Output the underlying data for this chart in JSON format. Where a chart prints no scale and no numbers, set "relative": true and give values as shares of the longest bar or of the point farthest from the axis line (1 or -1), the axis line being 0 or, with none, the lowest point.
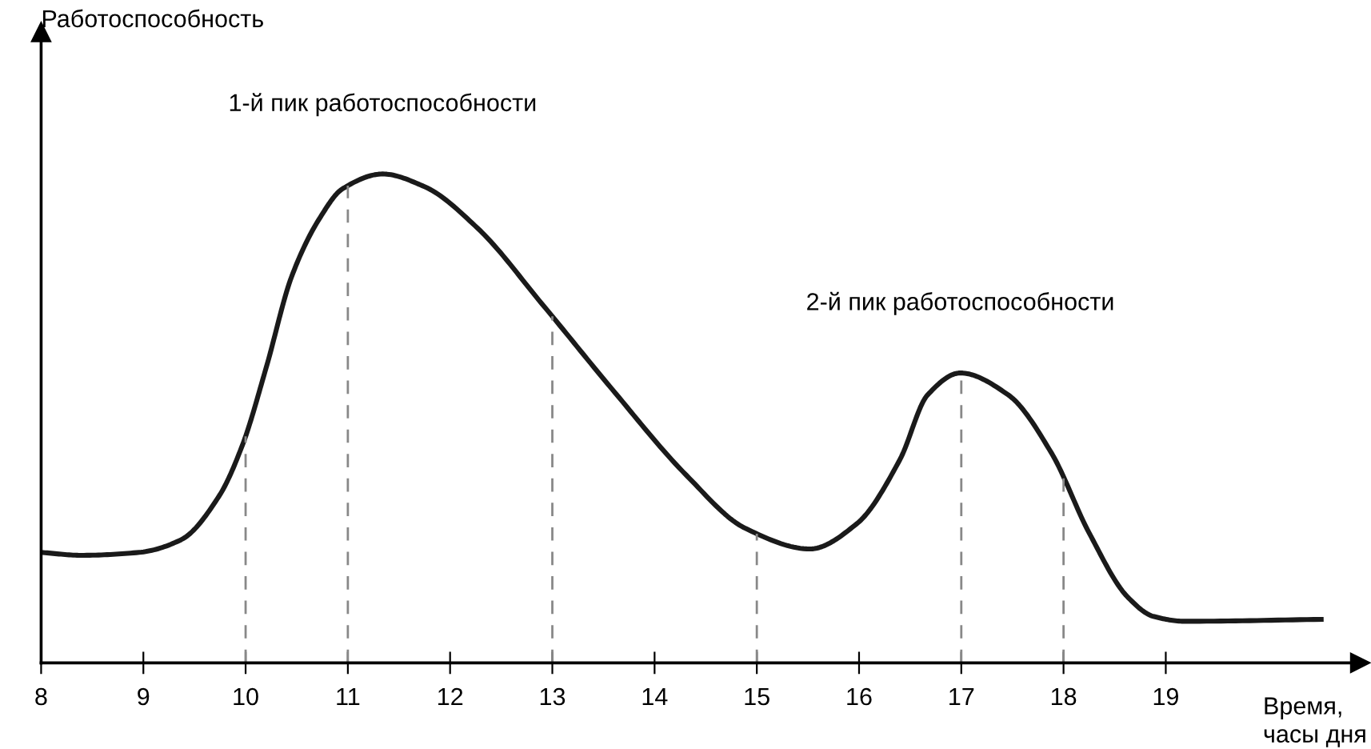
{
  "chart_data": {
    "type": "line",
    "relative": true,
    "xlabel": "Время,\nчасы дня",
    "xlim": [
      8,
      20.9
    ],
    "xticks": [
      8,
      9,
      10,
      11,
      12,
      13,
      14,
      15,
      16,
      17,
      18,
      19
    ],
    "x": [
      8.0,
      8.39,
      8.96,
      9.37,
      9.74,
      9.97,
      10.2,
      10.45,
      10.72,
      10.95,
      11.34,
      11.75,
      12.27,
      12.9,
      13.58,
      14.31,
      14.89,
      15.52,
      15.98,
      16.4,
      16.67,
      16.99,
      17.46,
      17.88,
      18.25,
      18.63,
      18.88,
      19.19,
      20.52
    ],
    "series": [
      {
        "color": "#1a1a1a",
        "values": [
          0.226,
          0.22,
          0.226,
          0.252,
          0.341,
          0.446,
          0.603,
          0.79,
          0.908,
          0.97,
          1,
          0.974,
          0.889,
          0.734,
          0.561,
          0.384,
          0.275,
          0.233,
          0.285,
          0.416,
          0.548,
          0.593,
          0.548,
          0.43,
          0.266,
          0.134,
          0.095,
          0.085,
          0.089
        ]
      }
    ],
    "ref_lines": [
      {
        "axis": "x",
        "value": 10,
        "color": "#888888",
        "line_style": "dashed"
      },
      {
        "axis": "x",
        "value": 11,
        "color": "#888888",
        "line_style": "dashed"
      },
      {
        "axis": "x",
        "value": 13,
        "color": "#888888",
        "line_style": "dashed"
      },
      {
        "axis": "x",
        "value": 15,
        "color": "#888888",
        "line_style": "dashed"
      },
      {
        "axis": "x",
        "value": 17,
        "color": "#888888",
        "line_style": "dashed"
      },
      {
        "axis": "x",
        "value": 18,
        "color": "#888888",
        "line_style": "dashed"
      }
    ],
    "annotations": [
      "Работоспособность",
      {
        "text": "1-й пик работоспособности",
        "x": 11.34,
        "y": 1
      },
      {
        "text": "2-й пик работоспособности",
        "x": 16.99,
        "y": 0.593
      }
    ],
    "grid": false,
    "marker": "none",
    "line_style": "solid"
  }
}
